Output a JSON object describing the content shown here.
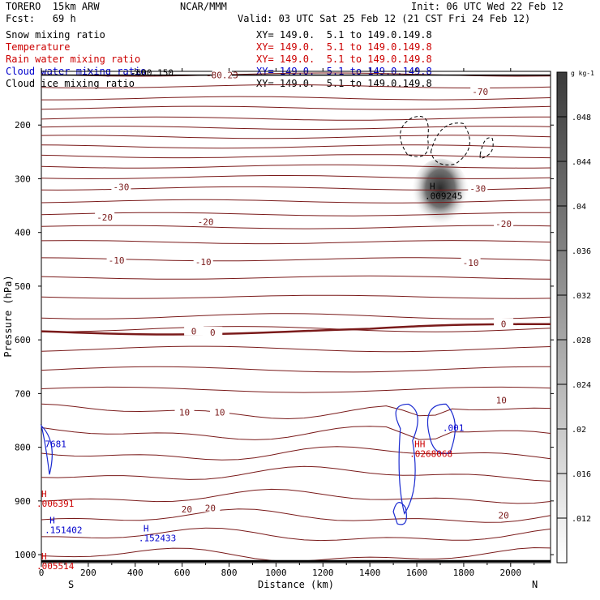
{
  "header": {
    "model": "TORERO  15km ARW",
    "forecast": "Fcst:   69 h",
    "org": "NCAR/MMM",
    "init": "Init: 06 UTC Wed 22 Feb 12",
    "valid": "Valid: 03 UTC Sat 25 Feb 12 (21 CST Fri 24 Feb 12)"
  },
  "legend": [
    {
      "label": "Snow mixing ratio",
      "xy": "XY= 149.0.  5.1 to 149.0.149.8",
      "color": "#000000"
    },
    {
      "label": "Temperature",
      "xy": "XY= 149.0.  5.1 to 149.0.149.8",
      "color": "#cc0000"
    },
    {
      "label": "Rain water mixing ratio",
      "xy": "XY= 149.0.  5.1 to 149.0.149.8",
      "color": "#cc0000"
    },
    {
      "label": "Cloud water mixing ratio",
      "xy": "XY= 149.0.  5.1 to 149.0.149.8",
      "color": "#0000cc"
    },
    {
      "label": "Cloud ice mixing ratio",
      "xy": "XY= 149.0.  5.1 to 149.0.149.8",
      "color": "#000000"
    }
  ],
  "chart_data": {
    "type": "cross-section",
    "xlabel": "Distance (km)",
    "ylabel": "Pressure (hPa)",
    "xlim": [
      0,
      2170
    ],
    "ylim": [
      1015,
      100
    ],
    "xticks": [
      0,
      200,
      400,
      600,
      800,
      1000,
      1200,
      1400,
      1600,
      1800,
      2000
    ],
    "yticks": [
      200,
      300,
      400,
      500,
      600,
      700,
      800,
      900,
      1000
    ],
    "x_end_labels": {
      "left": "S",
      "right": "N"
    },
    "colorbar": {
      "unit": "g kg-1",
      "ticks": [
        ".012",
        ".016",
        ".02",
        ".024",
        ".028",
        ".032",
        ".036",
        ".04",
        ".044",
        ".048"
      ]
    },
    "temperature_labels": [
      {
        "text": "-80.23",
        "x": 770,
        "p": 107
      },
      {
        "text": "-70",
        "x": 1870,
        "p": 138
      },
      {
        "text": "-30",
        "x": 340,
        "p": 315
      },
      {
        "text": "-30",
        "x": 1860,
        "p": 318
      },
      {
        "text": "-20",
        "x": 270,
        "p": 372
      },
      {
        "text": "-20",
        "x": 700,
        "p": 380
      },
      {
        "text": "-20",
        "x": 1970,
        "p": 384
      },
      {
        "text": "-10",
        "x": 320,
        "p": 452
      },
      {
        "text": "-10",
        "x": 690,
        "p": 455
      },
      {
        "text": "-10",
        "x": 1830,
        "p": 456
      },
      {
        "text": "0",
        "x": 650,
        "p": 584
      },
      {
        "text": "0",
        "x": 730,
        "p": 586
      },
      {
        "text": "0",
        "x": 1970,
        "p": 570
      },
      {
        "text": "10",
        "x": 610,
        "p": 735
      },
      {
        "text": "10",
        "x": 760,
        "p": 735
      },
      {
        "text": "10",
        "x": 1960,
        "p": 712
      },
      {
        "text": "20",
        "x": 620,
        "p": 915
      },
      {
        "text": "20",
        "x": 720,
        "p": 913
      },
      {
        "text": "20",
        "x": 1970,
        "p": 927
      }
    ],
    "maxima_labels": [
      {
        "mark": "H",
        "value": ".009245",
        "x": 1655,
        "p": 320,
        "color": "#000000"
      },
      {
        "mark": "HH",
        "value": ".0268068",
        "x": 1590,
        "p": 800,
        "color": "#cc0000"
      },
      {
        "text": ".001",
        "x": 1710,
        "p": 770,
        "color": "#0000cc"
      },
      {
        "text": "7681",
        "x": 15,
        "p": 800,
        "color": "#0000cc"
      },
      {
        "mark": "H",
        "value": ".006391",
        "x": 0,
        "p": 893,
        "color": "#cc0000"
      },
      {
        "mark": "H",
        "value": ".151402",
        "x": 35,
        "p": 942,
        "color": "#0000cc"
      },
      {
        "mark": "H",
        "value": ".152433",
        "x": 435,
        "p": 957,
        "color": "#0000cc"
      },
      {
        "mark": "H",
        "value": ".005514",
        "x": 0,
        "p": 1009,
        "color": "#cc0000"
      },
      {
        "text": "-600.150",
        "x": 380,
        "p": 108,
        "color": "#000000"
      }
    ]
  }
}
